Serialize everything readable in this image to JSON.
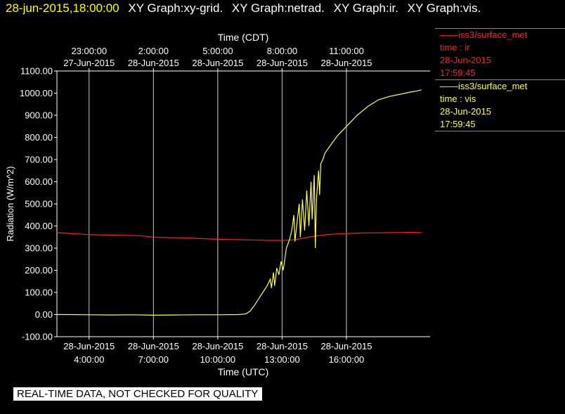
{
  "header": {
    "timestamp": "28-jun-2015,18:00:00",
    "graph_titles": [
      "XY Graph:xy-grid.",
      "XY Graph:netrad.",
      "XY Graph:ir.",
      "XY Graph:vis."
    ]
  },
  "legend": [
    {
      "name": "iss3/surface_met",
      "field": "time : ir",
      "date": "28-Jun-2015",
      "time": "17:59:45",
      "color": "#ff2020"
    },
    {
      "name": "iss3/surface_met",
      "field": "time : vis",
      "date": "28-Jun-2015",
      "time": "17:59:45",
      "color": "#ffff40"
    }
  ],
  "quality_notice": "REAL-TIME DATA, NOT CHECKED FOR QUALITY",
  "chart_data": {
    "type": "line",
    "xlabel": "Time (UTC)",
    "x2label": "Time (CDT)",
    "ylabel": "Radiation (W/m^2)",
    "xlim_hours_utc": [
      2.5,
      19.9
    ],
    "ylim": [
      -100,
      1100
    ],
    "yticks": [
      -100,
      0,
      100,
      200,
      300,
      400,
      500,
      600,
      700,
      800,
      900,
      1000,
      1100
    ],
    "ytick_labels": [
      "-100.00",
      "0.00",
      "100.00",
      "200.00",
      "300.00",
      "400.00",
      "500.00",
      "600.00",
      "700.00",
      "800.00",
      "900.00",
      "1000.00",
      "1100.00"
    ],
    "xticks_bottom": [
      {
        "at": 4,
        "date": "28-Jun-2015",
        "time": "4:00:00"
      },
      {
        "at": 7,
        "date": "28-Jun-2015",
        "time": "7:00:00"
      },
      {
        "at": 10,
        "date": "28-Jun-2015",
        "time": "10:00:00"
      },
      {
        "at": 13,
        "date": "28-Jun-2015",
        "time": "13:00:00"
      },
      {
        "at": 16,
        "date": "28-Jun-2015",
        "time": "16:00:00"
      }
    ],
    "xticks_top": [
      {
        "at": 4,
        "time": "23:00:00",
        "date": "27-Jun-2015"
      },
      {
        "at": 7,
        "time": "2:00:00",
        "date": "28-Jun-2015"
      },
      {
        "at": 10,
        "time": "5:00:00",
        "date": "28-Jun-2015"
      },
      {
        "at": 13,
        "time": "8:00:00",
        "date": "28-Jun-2015"
      },
      {
        "at": 16,
        "time": "11:00:00",
        "date": "28-Jun-2015"
      }
    ],
    "grid": true,
    "series": [
      {
        "name": "iss3/surface_met time : ir",
        "color": "#ff2020",
        "points": [
          [
            2.5,
            370
          ],
          [
            3.0,
            367
          ],
          [
            3.5,
            364
          ],
          [
            4.0,
            361
          ],
          [
            4.5,
            360
          ],
          [
            5.0,
            359
          ],
          [
            5.5,
            358
          ],
          [
            6.0,
            357
          ],
          [
            6.5,
            355
          ],
          [
            7.0,
            350
          ],
          [
            7.5,
            348
          ],
          [
            8.0,
            347
          ],
          [
            8.5,
            346
          ],
          [
            9.0,
            344
          ],
          [
            9.5,
            342
          ],
          [
            10.0,
            340
          ],
          [
            10.5,
            339
          ],
          [
            11.0,
            338
          ],
          [
            11.5,
            337
          ],
          [
            12.0,
            336
          ],
          [
            12.5,
            335
          ],
          [
            13.0,
            335
          ],
          [
            13.5,
            337
          ],
          [
            14.0,
            345
          ],
          [
            14.5,
            354
          ],
          [
            15.0,
            360
          ],
          [
            15.5,
            364
          ],
          [
            16.0,
            366
          ],
          [
            16.5,
            368
          ],
          [
            17.0,
            369
          ],
          [
            17.5,
            369
          ],
          [
            18.0,
            370
          ],
          [
            18.5,
            370
          ],
          [
            19.0,
            371
          ],
          [
            19.5,
            370
          ]
        ]
      },
      {
        "name": "iss3/surface_met time : vis",
        "color": "#ffff40",
        "points": [
          [
            2.5,
            0
          ],
          [
            3.0,
            0
          ],
          [
            4.0,
            -1
          ],
          [
            5.0,
            -2
          ],
          [
            6.0,
            -1
          ],
          [
            7.0,
            -3
          ],
          [
            8.0,
            -2
          ],
          [
            9.0,
            -1
          ],
          [
            10.0,
            -1
          ],
          [
            11.0,
            0
          ],
          [
            11.3,
            3
          ],
          [
            11.5,
            15
          ],
          [
            11.7,
            40
          ],
          [
            11.9,
            70
          ],
          [
            12.1,
            100
          ],
          [
            12.3,
            130
          ],
          [
            12.45,
            160
          ],
          [
            12.5,
            120
          ],
          [
            12.6,
            190
          ],
          [
            12.65,
            130
          ],
          [
            12.75,
            210
          ],
          [
            12.85,
            180
          ],
          [
            12.95,
            240
          ],
          [
            13.05,
            200
          ],
          [
            13.2,
            300
          ],
          [
            13.35,
            340
          ],
          [
            13.45,
            380
          ],
          [
            13.55,
            450
          ],
          [
            13.6,
            330
          ],
          [
            13.7,
            420
          ],
          [
            13.8,
            500
          ],
          [
            13.85,
            350
          ],
          [
            13.95,
            520
          ],
          [
            14.05,
            380
          ],
          [
            14.15,
            560
          ],
          [
            14.25,
            400
          ],
          [
            14.35,
            600
          ],
          [
            14.4,
            430
          ],
          [
            14.5,
            630
          ],
          [
            14.55,
            300
          ],
          [
            14.6,
            520
          ],
          [
            14.7,
            650
          ],
          [
            14.75,
            540
          ],
          [
            14.8,
            680
          ],
          [
            14.9,
            700
          ],
          [
            15.0,
            730
          ],
          [
            15.3,
            770
          ],
          [
            15.6,
            810
          ],
          [
            16.0,
            850
          ],
          [
            16.5,
            900
          ],
          [
            17.0,
            940
          ],
          [
            17.5,
            970
          ],
          [
            18.0,
            985
          ],
          [
            18.5,
            995
          ],
          [
            19.0,
            1005
          ],
          [
            19.3,
            1010
          ],
          [
            19.5,
            1015
          ]
        ]
      }
    ]
  }
}
